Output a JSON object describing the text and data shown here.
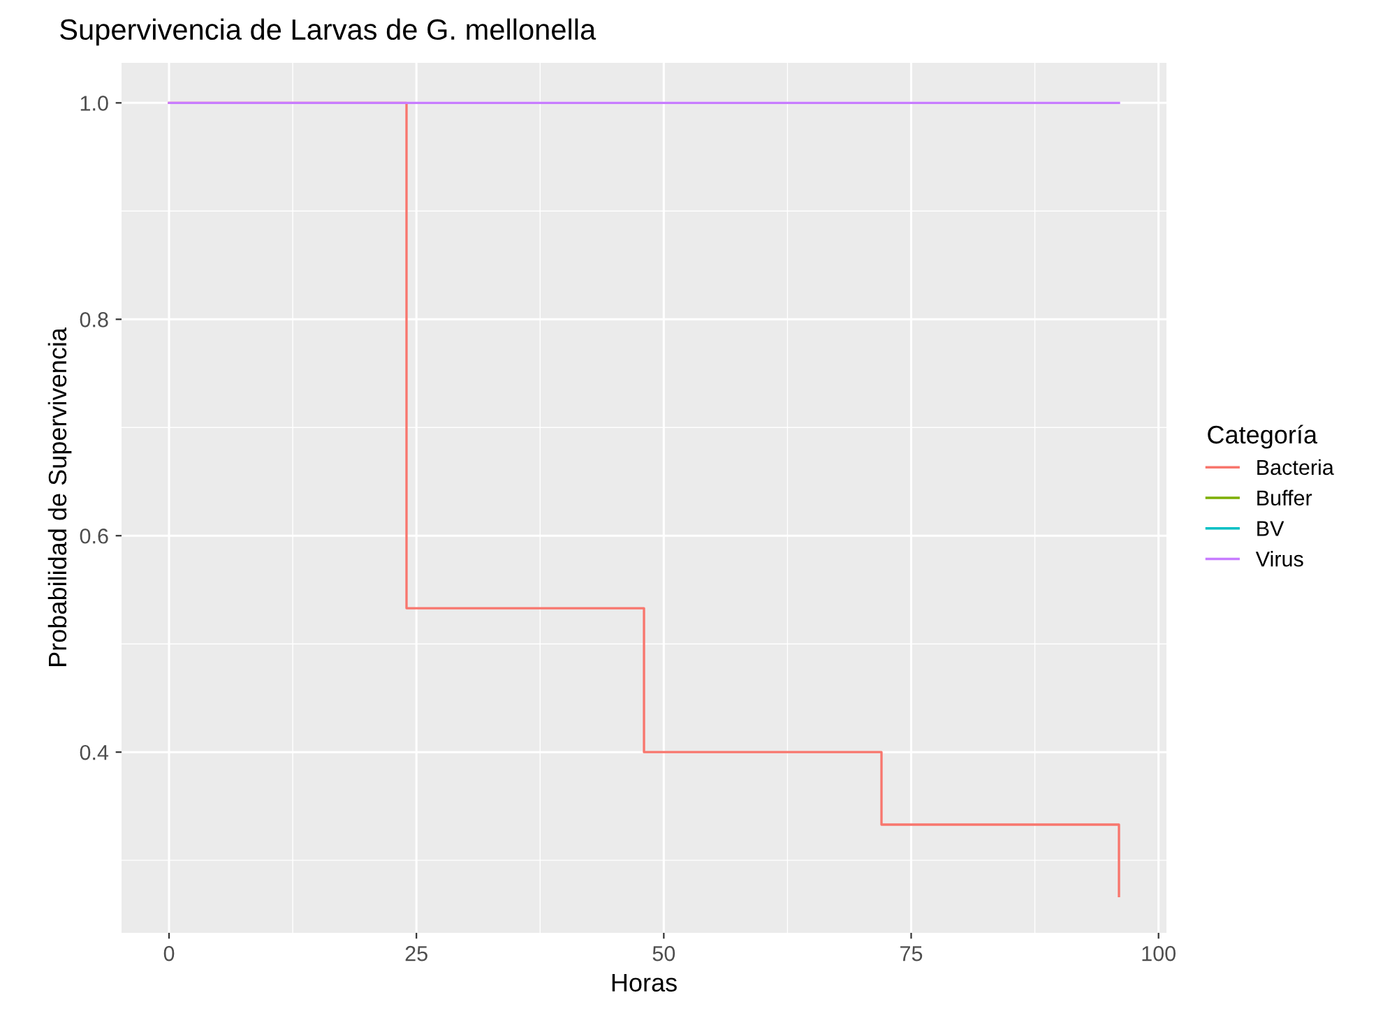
{
  "chart_data": {
    "type": "step",
    "title": "Supervivencia de Larvas de G. mellonella",
    "xlabel": "Horas",
    "ylabel": "Probabilidad de Supervivencia",
    "legend_title": "Categoría",
    "series": [
      {
        "name": "Bacteria",
        "color": "#f8766d",
        "x": [
          0,
          24,
          48,
          72,
          96
        ],
        "values": [
          1.0,
          0.533,
          0.4,
          0.333,
          0.267
        ]
      },
      {
        "name": "Buffer",
        "color": "#7cae00"
      },
      {
        "name": "BV",
        "color": "#00bfc4"
      },
      {
        "name": "Virus",
        "color": "#c77cff",
        "x": [
          0,
          96
        ],
        "values": [
          1.0,
          1.0
        ]
      }
    ],
    "xlim": [
      -4.8,
      100.8
    ],
    "xticks": [
      0,
      25,
      50,
      75,
      100
    ],
    "ylim": [
      0.233,
      1.037
    ],
    "yticks": [
      {
        "value": 0.4,
        "label": "0.4"
      },
      {
        "value": 0.6,
        "label": "0.6"
      },
      {
        "value": 0.8,
        "label": "0.8"
      },
      {
        "value": 1.0,
        "label": "1.0"
      }
    ],
    "grid": true,
    "legend": "right"
  }
}
